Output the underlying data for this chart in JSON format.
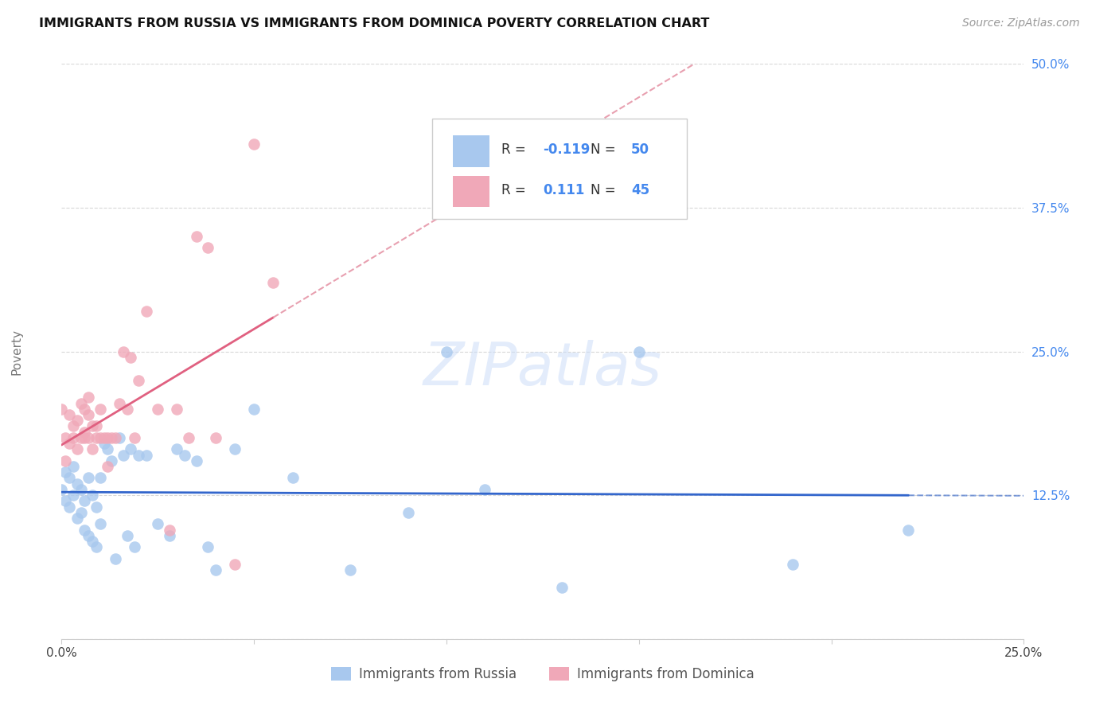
{
  "title": "IMMIGRANTS FROM RUSSIA VS IMMIGRANTS FROM DOMINICA POVERTY CORRELATION CHART",
  "source": "Source: ZipAtlas.com",
  "ylabel": "Poverty",
  "xlim": [
    0.0,
    0.25
  ],
  "ylim": [
    0.0,
    0.5
  ],
  "russia_color": "#a8c8ee",
  "dominica_color": "#f0a8b8",
  "russia_line_color": "#3366cc",
  "dominica_line_color": "#e06080",
  "dominica_dash_color": "#e8a0b0",
  "russia_R": -0.119,
  "russia_N": 50,
  "dominica_R": 0.111,
  "dominica_N": 45,
  "watermark": "ZIPatlas",
  "legend_label_russia": "Immigrants from Russia",
  "legend_label_dominica": "Immigrants from Dominica",
  "russia_x": [
    0.0,
    0.001,
    0.001,
    0.002,
    0.002,
    0.003,
    0.003,
    0.004,
    0.004,
    0.005,
    0.005,
    0.006,
    0.006,
    0.007,
    0.007,
    0.008,
    0.008,
    0.009,
    0.009,
    0.01,
    0.01,
    0.011,
    0.012,
    0.013,
    0.014,
    0.015,
    0.016,
    0.017,
    0.018,
    0.019,
    0.02,
    0.022,
    0.025,
    0.028,
    0.03,
    0.032,
    0.035,
    0.038,
    0.04,
    0.045,
    0.05,
    0.06,
    0.075,
    0.09,
    0.1,
    0.11,
    0.13,
    0.15,
    0.19,
    0.22
  ],
  "russia_y": [
    0.13,
    0.145,
    0.12,
    0.14,
    0.115,
    0.15,
    0.125,
    0.135,
    0.105,
    0.13,
    0.11,
    0.12,
    0.095,
    0.14,
    0.09,
    0.125,
    0.085,
    0.115,
    0.08,
    0.14,
    0.1,
    0.17,
    0.165,
    0.155,
    0.07,
    0.175,
    0.16,
    0.09,
    0.165,
    0.08,
    0.16,
    0.16,
    0.1,
    0.09,
    0.165,
    0.16,
    0.155,
    0.08,
    0.06,
    0.165,
    0.2,
    0.14,
    0.06,
    0.11,
    0.25,
    0.13,
    0.045,
    0.25,
    0.065,
    0.095
  ],
  "dominica_x": [
    0.0,
    0.001,
    0.001,
    0.002,
    0.002,
    0.003,
    0.003,
    0.004,
    0.004,
    0.005,
    0.005,
    0.006,
    0.006,
    0.006,
    0.007,
    0.007,
    0.007,
    0.008,
    0.008,
    0.009,
    0.009,
    0.01,
    0.01,
    0.011,
    0.012,
    0.012,
    0.013,
    0.014,
    0.015,
    0.016,
    0.017,
    0.018,
    0.019,
    0.02,
    0.022,
    0.025,
    0.028,
    0.03,
    0.033,
    0.035,
    0.038,
    0.04,
    0.045,
    0.05,
    0.055
  ],
  "dominica_y": [
    0.2,
    0.175,
    0.155,
    0.195,
    0.17,
    0.185,
    0.175,
    0.19,
    0.165,
    0.205,
    0.175,
    0.18,
    0.2,
    0.175,
    0.21,
    0.195,
    0.175,
    0.185,
    0.165,
    0.185,
    0.175,
    0.2,
    0.175,
    0.175,
    0.175,
    0.15,
    0.175,
    0.175,
    0.205,
    0.25,
    0.2,
    0.245,
    0.175,
    0.225,
    0.285,
    0.2,
    0.095,
    0.2,
    0.175,
    0.35,
    0.34,
    0.175,
    0.065,
    0.43,
    0.31
  ]
}
